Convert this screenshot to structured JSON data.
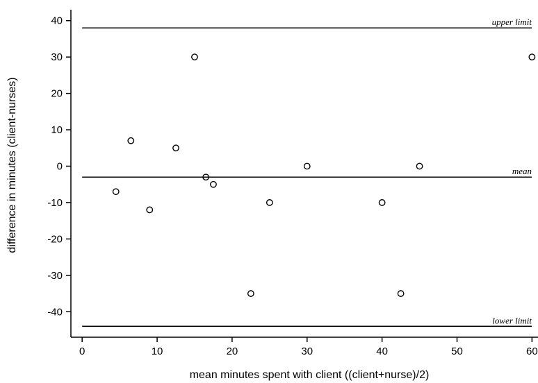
{
  "chart_data": {
    "type": "scatter",
    "title": "",
    "xlabel": "mean minutes spent with client ((client+nurse)/2)",
    "ylabel": "difference in minutes (client-nurses)",
    "xlim": [
      -1.5,
      60.8
    ],
    "ylim": [
      -47,
      43
    ],
    "xticks": [
      0,
      10,
      20,
      30,
      40,
      50,
      60
    ],
    "yticks": [
      40,
      30,
      20,
      10,
      0,
      -10,
      -20,
      -30,
      -40
    ],
    "xtick_labels": [
      "0",
      "10",
      "20",
      "30",
      "40",
      "50",
      "60"
    ],
    "ytick_labels": [
      "40",
      "30",
      "20",
      "10",
      "0",
      "-10",
      "-20",
      "-30",
      "-40"
    ],
    "grid": false,
    "points": [
      {
        "x": 4.5,
        "y": -7
      },
      {
        "x": 6.5,
        "y": 7
      },
      {
        "x": 9,
        "y": -12
      },
      {
        "x": 12.5,
        "y": 5
      },
      {
        "x": 15,
        "y": 30
      },
      {
        "x": 16.5,
        "y": -3
      },
      {
        "x": 17.5,
        "y": -5
      },
      {
        "x": 22.5,
        "y": -35
      },
      {
        "x": 25,
        "y": -10
      },
      {
        "x": 30,
        "y": 0
      },
      {
        "x": 40,
        "y": -10
      },
      {
        "x": 42.5,
        "y": -35
      },
      {
        "x": 45,
        "y": 0
      },
      {
        "x": 60,
        "y": 30
      }
    ],
    "reference_lines": [
      {
        "label": "upper limit",
        "y": 38
      },
      {
        "label": "mean",
        "y": -3
      },
      {
        "label": "lower limit",
        "y": -44
      }
    ]
  }
}
